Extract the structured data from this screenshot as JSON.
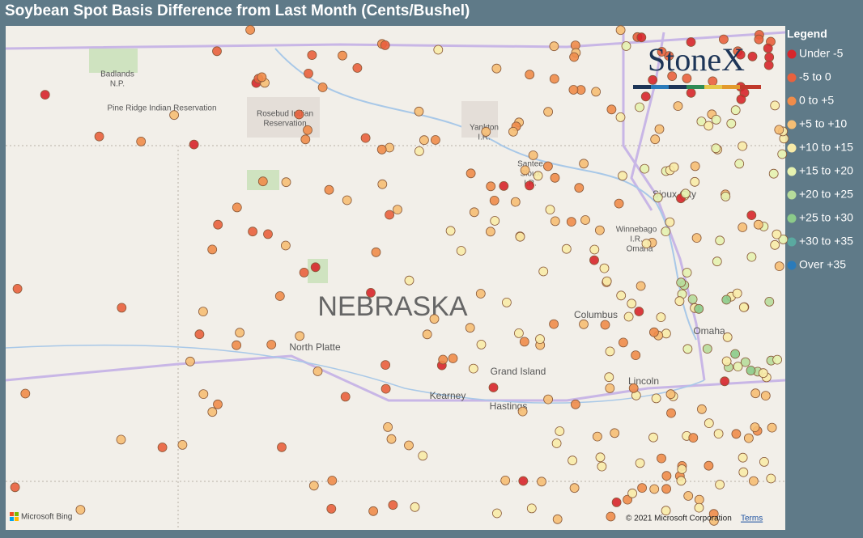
{
  "header": {
    "title": "Soybean Spot Basis Difference from Last Month (Cents/Bushel)"
  },
  "legend": {
    "title": "Legend",
    "items": [
      {
        "label": "Under -5",
        "color": "#d7262b"
      },
      {
        "label": "-5 to 0",
        "color": "#e9613d"
      },
      {
        "label": "0 to +5",
        "color": "#f08c4a"
      },
      {
        "label": "+5 to +10",
        "color": "#f6be74"
      },
      {
        "label": "+10 to +15",
        "color": "#f8eba8"
      },
      {
        "label": "+15 to +20",
        "color": "#e6f2b0"
      },
      {
        "label": "+20 to +25",
        "color": "#b7dc9b"
      },
      {
        "label": "+25 to +30",
        "color": "#8ccb8a"
      },
      {
        "label": "+30 to +35",
        "color": "#5aa9a0"
      },
      {
        "label": "Over +35",
        "color": "#2b7bba"
      }
    ]
  },
  "map": {
    "state": "NEBRASKA",
    "labels": [
      "Badlands",
      "N.P.",
      "Pine Ridge Indian Reservation",
      "Rosebud Indian",
      "Reservation",
      "Yankton",
      "I.R.",
      "Santee",
      "Sioux",
      "I.R.",
      "Sioux City",
      "Winnebago",
      "I.R.",
      "Omaha",
      "Columbus",
      "North Platte",
      "Grand Island",
      "Kearney",
      "Hastings",
      "Lincoln",
      "Omaha"
    ]
  },
  "logo": "StoneX",
  "attribution": {
    "provider": "Microsoft Bing",
    "copyright": "© 2021 Microsoft Corporation",
    "terms": "Terms"
  }
}
